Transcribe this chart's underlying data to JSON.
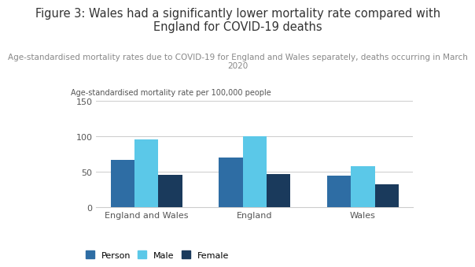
{
  "title": "Figure 3: Wales had a significantly lower mortality rate compared with\nEngland for COVID-19 deaths",
  "subtitle": "Age-standardised mortality rates due to COVID-19 for England and Wales separately, deaths occurring in March\n2020",
  "ylabel": "Age-standardised mortality rate per 100,000 people",
  "categories": [
    "England and Wales",
    "England",
    "Wales"
  ],
  "series": {
    "Person": [
      67,
      70,
      45
    ],
    "Male": [
      96,
      100,
      58
    ],
    "Female": [
      46,
      47,
      33
    ]
  },
  "colors": {
    "Person": "#2e6da4",
    "Male": "#5bc8e8",
    "Female": "#1a3a5c"
  },
  "ylim": [
    0,
    150
  ],
  "yticks": [
    0,
    50,
    100,
    150
  ],
  "bar_width": 0.22,
  "background_color": "#ffffff",
  "title_fontsize": 10.5,
  "subtitle_fontsize": 7.5,
  "ylabel_fontsize": 7,
  "tick_fontsize": 8,
  "legend_fontsize": 8
}
